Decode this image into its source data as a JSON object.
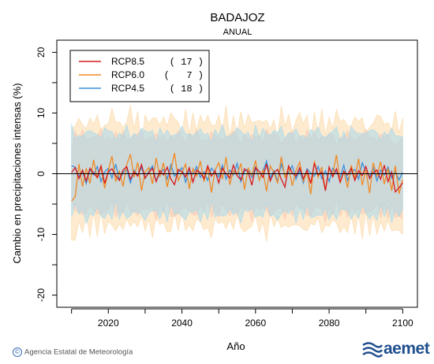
{
  "chart_data": {
    "type": "line",
    "title": "BADAJOZ",
    "subtitle": "ANUAL",
    "xlabel": "Año",
    "ylabel": "Cambio en precipitaciones intensas (%)",
    "xlim": [
      2006,
      2104
    ],
    "ylim": [
      -22,
      22
    ],
    "x_ticks": [
      2020,
      2040,
      2060,
      2080,
      2100
    ],
    "y_ticks": [
      -20,
      -10,
      0,
      10,
      20
    ],
    "legend_position": "top-left",
    "series": [
      {
        "name": "RCP8.5",
        "count": "( 17 )",
        "color": "#d7191c",
        "band_color": "#f4b6c2",
        "x_start": 2010,
        "values": [
          0.2,
          1.0,
          -0.8,
          0.6,
          -1.2,
          0.9,
          0.1,
          -0.6,
          1.3,
          -1.6,
          0.4,
          0.8,
          -0.3,
          -1.1,
          0.6,
          1.2,
          -0.9,
          0.3,
          -0.4,
          1.5,
          -0.7,
          0.2,
          0.9,
          -1.3,
          0.5,
          -0.2,
          1.1,
          -0.9,
          -1.8,
          0.7,
          0.3,
          -0.5,
          1.0,
          -1.4,
          0.6,
          0.2,
          -0.8,
          1.3,
          -0.4,
          0.5,
          -1.5,
          0.9,
          0.0,
          -0.7,
          1.4,
          -0.3,
          -1.0,
          0.8,
          0.3,
          -1.9,
          1.0,
          0.4,
          -0.6,
          1.6,
          -1.2,
          0.2,
          0.7,
          -0.9,
          -2.2,
          1.3,
          0.1,
          -0.4,
          1.0,
          -0.8,
          0.6,
          -1.6,
          1.7,
          -0.2,
          0.3,
          -2.8,
          1.1,
          -0.5,
          0.8,
          -1.4,
          0.4,
          -0.2,
          0.9,
          -1.1,
          0.5,
          -0.3,
          1.2,
          -0.8,
          0.2,
          0.6,
          -0.9,
          1.4,
          -1.3,
          0.3,
          -3.0,
          -2.3,
          -1.5
        ]
      },
      {
        "name": "RCP6.0",
        "count": "(   7 )",
        "color": "#f08a24",
        "band_color": "#fbd9a8",
        "x_start": 2010,
        "values": [
          -4.5,
          -3.8,
          1.6,
          -2.1,
          0.9,
          -1.6,
          2.3,
          -0.8,
          1.1,
          -2.4,
          0.5,
          2.9,
          -1.3,
          0.4,
          -2.1,
          1.5,
          3.2,
          -0.6,
          1.9,
          -2.8,
          0.3,
          1.0,
          -1.7,
          2.6,
          -0.5,
          1.8,
          -2.2,
          0.7,
          3.4,
          -1.1,
          0.2,
          1.6,
          -2.5,
          0.8,
          -0.4,
          2.1,
          -1.3,
          1.0,
          -3.1,
          0.6,
          1.8,
          -0.9,
          2.7,
          -1.8,
          0.5,
          -0.2,
          1.7,
          -2.6,
          0.9,
          -0.3,
          2.2,
          -1.1,
          0.6,
          -2.9,
          1.3,
          0.2,
          -1.6,
          2.8,
          -0.7,
          1.2,
          -2.0,
          0.5,
          1.9,
          -1.2,
          0.3,
          -3.4,
          2.1,
          -0.6,
          1.1,
          -2.7,
          0.8,
          -0.1,
          3.1,
          -1.5,
          0.4,
          -2.3,
          1.4,
          -0.8,
          2.5,
          -1.9,
          0.6,
          -3.2,
          1.8,
          -0.4,
          2.0,
          -1.7,
          0.9,
          -2.8,
          1.3,
          -3.3,
          -1.0
        ]
      },
      {
        "name": "RCP4.5",
        "count": "( 18 )",
        "color": "#3a8fdc",
        "band_color": "#a8d8ec",
        "x_start": 2010,
        "values": [
          1.3,
          1.1,
          -0.5,
          0.4,
          -1.6,
          0.7,
          -0.2,
          1.2,
          -1.3,
          0.3,
          0.9,
          -0.7,
          1.6,
          -1.0,
          0.2,
          0.8,
          -1.5,
          0.6,
          -0.3,
          1.1,
          -0.8,
          0.4,
          1.3,
          -1.2,
          0.1,
          0.7,
          -0.9,
          1.5,
          -0.4,
          0.2,
          1.0,
          -1.4,
          0.5,
          -0.1,
          1.2,
          -0.6,
          0.3,
          -1.1,
          0.9,
          0.2,
          -0.5,
          1.4,
          -0.9,
          0.6,
          -0.2,
          1.7,
          -1.3,
          0.4,
          0.8,
          -0.6,
          1.1,
          -1.0,
          0.3,
          2.1,
          -0.7,
          0.5,
          -1.2,
          1.6,
          -0.3,
          0.2,
          1.3,
          -0.9,
          0.6,
          -1.5,
          0.8,
          0.1,
          -0.4,
          1.2,
          -0.8,
          0.5,
          -1.3,
          0.9,
          0.2,
          -0.6,
          1.4,
          -1.1,
          0.4,
          0.7,
          -0.9,
          1.8,
          0.3,
          -0.5,
          1.0,
          -1.2,
          0.6,
          -0.2,
          1.1,
          -0.7,
          0.3,
          -1.0,
          0.2
        ]
      }
    ]
  },
  "footer": {
    "credit_symbol": "©",
    "credit": "Agencia Estatal de Meteorología",
    "logo_text": "aemet"
  }
}
